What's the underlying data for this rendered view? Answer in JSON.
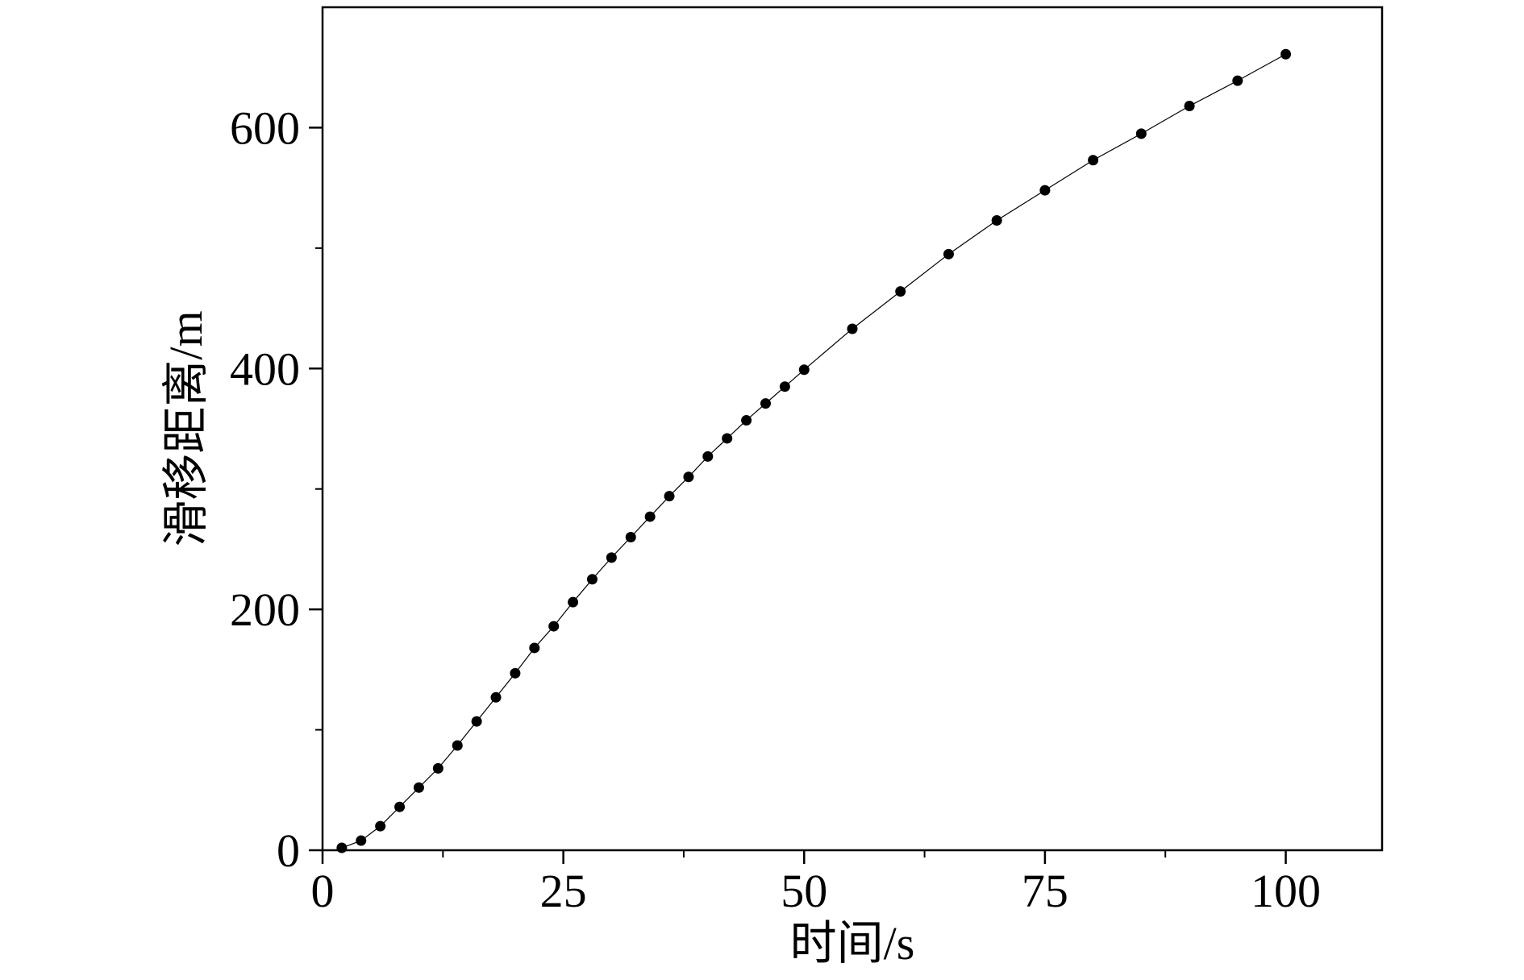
{
  "chart_data": {
    "type": "line",
    "x_label": "时间/s",
    "y_label": "滑移距离/m",
    "x": [
      2,
      4,
      6,
      8,
      10,
      12,
      14,
      16,
      18,
      20,
      22,
      24,
      26,
      28,
      30,
      32,
      34,
      36,
      38,
      40,
      42,
      44,
      46,
      48,
      50,
      55,
      60,
      65,
      70,
      75,
      80,
      85,
      90,
      95,
      100
    ],
    "series": [
      {
        "color": "#000000",
        "values": [
          2,
          8,
          20,
          36,
          52,
          68,
          87,
          107,
          127,
          147,
          168,
          186,
          206,
          225,
          243,
          260,
          277,
          294,
          310,
          327,
          342,
          357,
          371,
          385,
          399,
          433,
          464,
          495,
          523,
          548,
          573,
          595,
          618,
          639,
          661
        ]
      }
    ],
    "xlim": [
      0,
      110
    ],
    "xticks": [
      0,
      25,
      50,
      75,
      100
    ],
    "xminorticks": [
      12.5,
      37.5,
      62.5,
      87.5
    ],
    "ylim": [
      0,
      700
    ],
    "yticks": [
      0,
      200,
      400,
      600
    ],
    "yminorticks": [
      100,
      300,
      500
    ],
    "grid": false,
    "markers": true
  }
}
